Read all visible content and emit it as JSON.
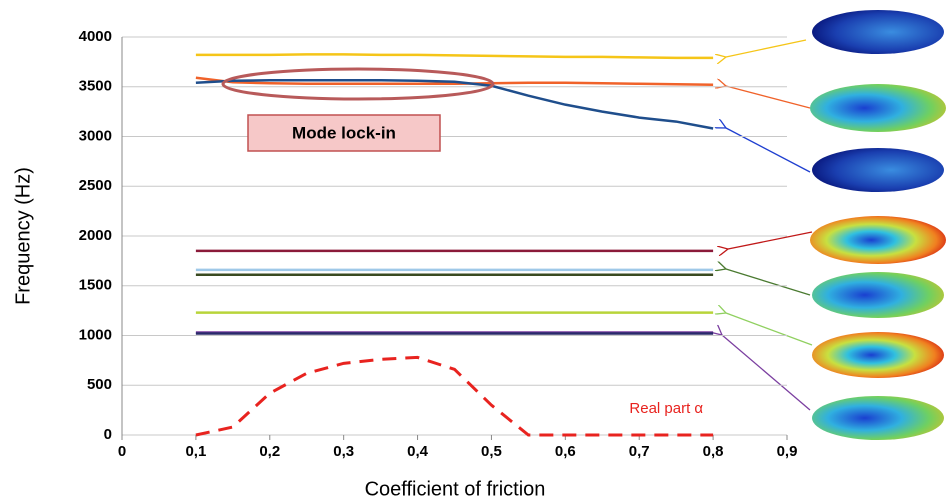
{
  "chart_data": {
    "type": "line",
    "y_label": "Frequency (Hz)",
    "x_label": "Coefficient of friction",
    "annotation": "Mode lock-in",
    "x": [
      0.1,
      0.15,
      0.2,
      0.25,
      0.3,
      0.35,
      0.4,
      0.45,
      0.5,
      0.55,
      0.6,
      0.65,
      0.7,
      0.75,
      0.8
    ],
    "series": [
      {
        "color": "#f5c518",
        "values": [
          3820,
          3820,
          3820,
          3825,
          3825,
          3820,
          3820,
          3815,
          3810,
          3805,
          3800,
          3800,
          3795,
          3790,
          3790
        ]
      },
      {
        "color": "#f0622a",
        "values": [
          3590,
          3545,
          3535,
          3530,
          3530,
          3530,
          3530,
          3530,
          3535,
          3540,
          3540,
          3535,
          3530,
          3525,
          3520
        ]
      },
      {
        "color": "#1f4e8c",
        "values": [
          3540,
          3560,
          3565,
          3565,
          3565,
          3565,
          3560,
          3550,
          3510,
          3410,
          3320,
          3250,
          3190,
          3150,
          3080
        ]
      },
      {
        "color": "#8b1a3a",
        "values": [
          1850,
          1850,
          1850,
          1850,
          1850,
          1850,
          1850,
          1850,
          1850,
          1850,
          1850,
          1850,
          1850,
          1850,
          1850
        ]
      },
      {
        "color": "#9ec8e8",
        "values": [
          1660,
          1660,
          1660,
          1660,
          1660,
          1660,
          1660,
          1660,
          1660,
          1660,
          1660,
          1660,
          1660,
          1660,
          1660
        ]
      },
      {
        "color": "#3a4a20",
        "values": [
          1610,
          1610,
          1610,
          1610,
          1610,
          1610,
          1610,
          1610,
          1610,
          1610,
          1610,
          1610,
          1610,
          1610,
          1610
        ]
      },
      {
        "color": "#b8d43a",
        "values": [
          1230,
          1230,
          1230,
          1230,
          1230,
          1230,
          1230,
          1230,
          1230,
          1230,
          1230,
          1230,
          1230,
          1230,
          1230
        ]
      },
      {
        "color": "#7b3fa0",
        "values": [
          1030,
          1030,
          1030,
          1030,
          1030,
          1030,
          1030,
          1030,
          1030,
          1030,
          1030,
          1030,
          1030,
          1030,
          1030
        ]
      },
      {
        "color": "#2a2a6a",
        "values": [
          1020,
          1020,
          1020,
          1020,
          1020,
          1020,
          1020,
          1020,
          1020,
          1020,
          1020,
          1020,
          1020,
          1020,
          1020
        ]
      },
      {
        "name": "Real part α",
        "color": "#e8231f",
        "dashed": true,
        "values": [
          0,
          80,
          420,
          620,
          720,
          760,
          780,
          660,
          300,
          0,
          0,
          0,
          0,
          0,
          0
        ]
      }
    ],
    "xlim": [
      0,
      0.9
    ],
    "xticks": [
      0,
      {
        "value": 0.1,
        "label": "0,1"
      },
      {
        "value": 0.2,
        "label": "0,2"
      },
      {
        "value": 0.3,
        "label": "0,3"
      },
      {
        "value": 0.4,
        "label": "0,4"
      },
      {
        "value": 0.5,
        "label": "0,5"
      },
      {
        "value": 0.6,
        "label": "0,6"
      },
      {
        "value": 0.7,
        "label": "0,7"
      },
      {
        "value": 0.8,
        "label": "0,8"
      },
      {
        "value": 0.9,
        "label": "0,9"
      }
    ],
    "ylim": [
      0,
      4000
    ],
    "yticks": [
      0,
      500,
      1000,
      1500,
      2000,
      2500,
      3000,
      3500,
      4000
    ],
    "grid": true
  }
}
